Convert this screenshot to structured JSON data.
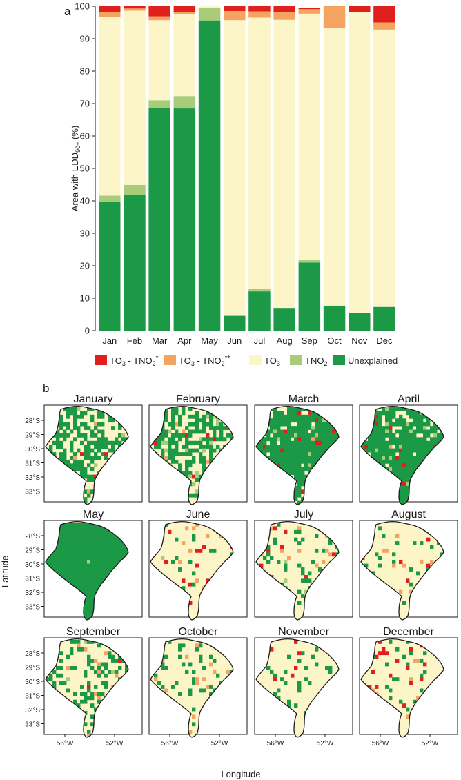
{
  "panel_labels": {
    "a": "a",
    "b": "b"
  },
  "colors": {
    "TO3_TNO2_1": "#e0201c",
    "TO3_TNO2_2": "#f4a460",
    "TO3": "#fcf5c8",
    "TNO2": "#a8cc7a",
    "Unexplained": "#1b9946",
    "outline": "#1a1a1a"
  },
  "chart_data": [
    {
      "type": "bar",
      "stacked": true,
      "title": "",
      "xlabel": "",
      "ylabel": "Area with EDD90+ (%)",
      "ylabel_parts": {
        "main": "Area with EDD",
        "sub": "90+",
        "suffix": " (%)"
      },
      "ylim": [
        0,
        100
      ],
      "yticks": [
        0,
        10,
        20,
        30,
        40,
        50,
        60,
        70,
        80,
        90,
        100
      ],
      "grid": false,
      "legend_position": "bottom",
      "categories": [
        "Jan",
        "Feb",
        "Mar",
        "Apr",
        "May",
        "Jun",
        "Jul",
        "Aug",
        "Sep",
        "Oct",
        "Nov",
        "Dec"
      ],
      "series": [
        {
          "name": "Unexplained",
          "key": "Unexplained",
          "legend": "Unexplained",
          "values": [
            39.6,
            41.8,
            68.6,
            68.5,
            95.6,
            4.5,
            12.1,
            7.0,
            21.0,
            7.7,
            5.4,
            7.3
          ]
        },
        {
          "name": "TNO2",
          "key": "TNO2",
          "legend": {
            "main": "TNO",
            "sub": "2"
          },
          "values": [
            2.0,
            3.1,
            2.4,
            3.8,
            4.0,
            0.4,
            0.9,
            0.0,
            0.7,
            0.0,
            0.0,
            0.0
          ]
        },
        {
          "name": "TO3",
          "key": "TO3",
          "legend": {
            "main": "TO",
            "sub": "3"
          },
          "values": [
            55.2,
            53.7,
            24.7,
            25.3,
            0.4,
            90.8,
            83.5,
            88.8,
            76.0,
            85.6,
            92.9,
            85.5
          ]
        },
        {
          "name": "TO3 - TNO2**",
          "key": "TO3_TNO2_2",
          "legend": {
            "main": "TO",
            "sub": "3",
            "mid": " - TNO",
            "sub2": "2",
            "sup": "**"
          },
          "values": [
            1.5,
            0.7,
            1.2,
            0.6,
            0.0,
            2.8,
            1.9,
            2.4,
            1.4,
            6.7,
            0.0,
            2.2
          ]
        },
        {
          "name": "TO3 - TNO2*",
          "key": "TO3_TNO2_1",
          "legend": {
            "main": "TO",
            "sub": "3",
            "mid": " - TNO",
            "sub2": "2",
            "sup": "*"
          },
          "values": [
            1.7,
            0.7,
            3.1,
            1.8,
            0.0,
            1.5,
            1.6,
            1.8,
            0.3,
            0.0,
            1.7,
            5.0
          ]
        }
      ]
    },
    {
      "type": "heatmap",
      "title": "",
      "xlabel": "Longitude",
      "ylabel": "Latitude",
      "xticks": [
        "56°W",
        "52°W"
      ],
      "yticks": [
        "28°S",
        "29°S",
        "30°S",
        "31°S",
        "32°S",
        "33°S"
      ],
      "grid": false,
      "panels": [
        "January",
        "February",
        "March",
        "April",
        "May",
        "June",
        "July",
        "August",
        "September",
        "October",
        "November",
        "December"
      ],
      "monthly_area_percent": {
        "Unexplained": [
          39.6,
          41.8,
          68.6,
          68.5,
          95.6,
          4.5,
          12.1,
          7.0,
          21.0,
          7.7,
          5.4,
          7.3
        ],
        "TNO2": [
          2.0,
          3.1,
          2.4,
          3.8,
          4.0,
          0.4,
          0.9,
          0.0,
          0.7,
          0.0,
          0.0,
          0.0
        ],
        "TO3_TNO2_2": [
          1.5,
          0.7,
          1.2,
          0.6,
          0.0,
          2.8,
          1.9,
          2.4,
          1.4,
          6.7,
          0.0,
          2.2
        ],
        "TO3_TNO2_1": [
          1.7,
          0.7,
          3.1,
          1.8,
          0.0,
          1.5,
          1.6,
          1.8,
          0.3,
          0.0,
          1.7,
          5.0
        ]
      }
    }
  ]
}
